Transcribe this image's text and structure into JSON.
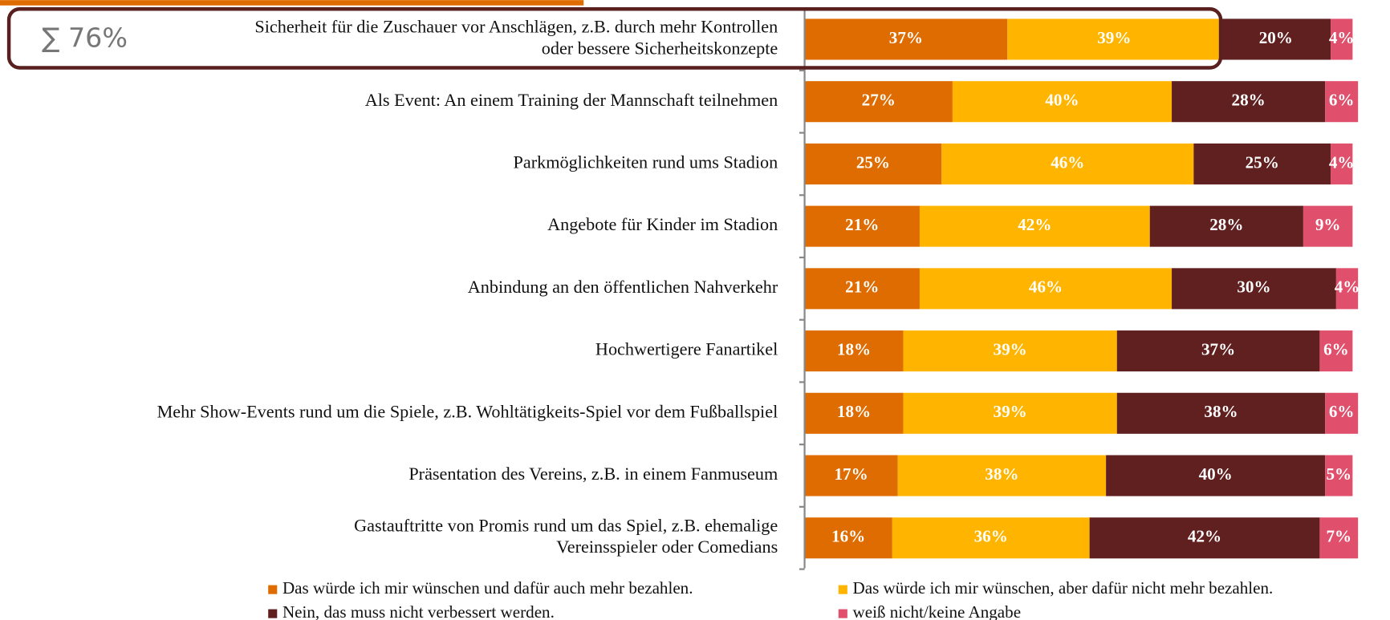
{
  "chart_data": {
    "type": "stacked-bar-horizontal",
    "annotation": "∑ 76%",
    "categories": [
      "Sicherheit für die Zuschauer vor Anschlägen, z.B. durch mehr Kontrollen\noder bessere Sicherheitskonzepte",
      "Als Event: An einem Training der Mannschaft teilnehmen",
      "Parkmöglichkeiten rund ums Stadion",
      "Angebote für Kinder im Stadion",
      "Anbindung an den öffentlichen Nahverkehr",
      "Hochwertigere Fanartikel",
      "Mehr Show-Events rund um die Spiele, z.B. Wohltätigkeits-Spiel vor dem Fußballspiel",
      "Präsentation des Vereins, z.B. in einem Fanmuseum",
      "Gastauftritte von Promis rund um das Spiel, z.B. ehemalige\nVereinsspieler oder Comedians"
    ],
    "series": [
      {
        "name": "Das würde ich mir wünschen und dafür auch mehr bezahlen.",
        "color": "#df6c00",
        "values": [
          37,
          27,
          25,
          21,
          21,
          18,
          18,
          17,
          16
        ],
        "value_labels": [
          "37%",
          "27%",
          "25%",
          "21%",
          "21%",
          "18%",
          "18%",
          "17%",
          "16%"
        ]
      },
      {
        "name": "Das würde ich mir wünschen, aber dafür nicht mehr bezahlen.",
        "color": "#ffb500",
        "values": [
          39,
          40,
          46,
          42,
          46,
          39,
          39,
          38,
          36
        ],
        "value_labels": [
          "39%",
          "40%",
          "46%",
          "42%",
          "46%",
          "39%",
          "39%",
          "38%",
          "36%"
        ]
      },
      {
        "name": "Nein, das muss nicht verbessert werden.",
        "color": "#602020",
        "values": [
          20,
          28,
          25,
          28,
          30,
          37,
          38,
          40,
          42
        ],
        "value_labels": [
          "20%",
          "28%",
          "25%",
          "28%",
          "30%",
          "37%",
          "38%",
          "40%",
          "42%"
        ]
      },
      {
        "name": "weiß nicht/keine Angabe",
        "color": "#e0506c",
        "values": [
          4,
          6,
          4,
          9,
          4,
          6,
          6,
          5,
          7
        ],
        "value_labels": [
          "4%",
          "6%",
          "4%",
          "9%",
          "4%",
          "6%",
          "6%",
          "5%",
          "7%"
        ]
      }
    ]
  }
}
